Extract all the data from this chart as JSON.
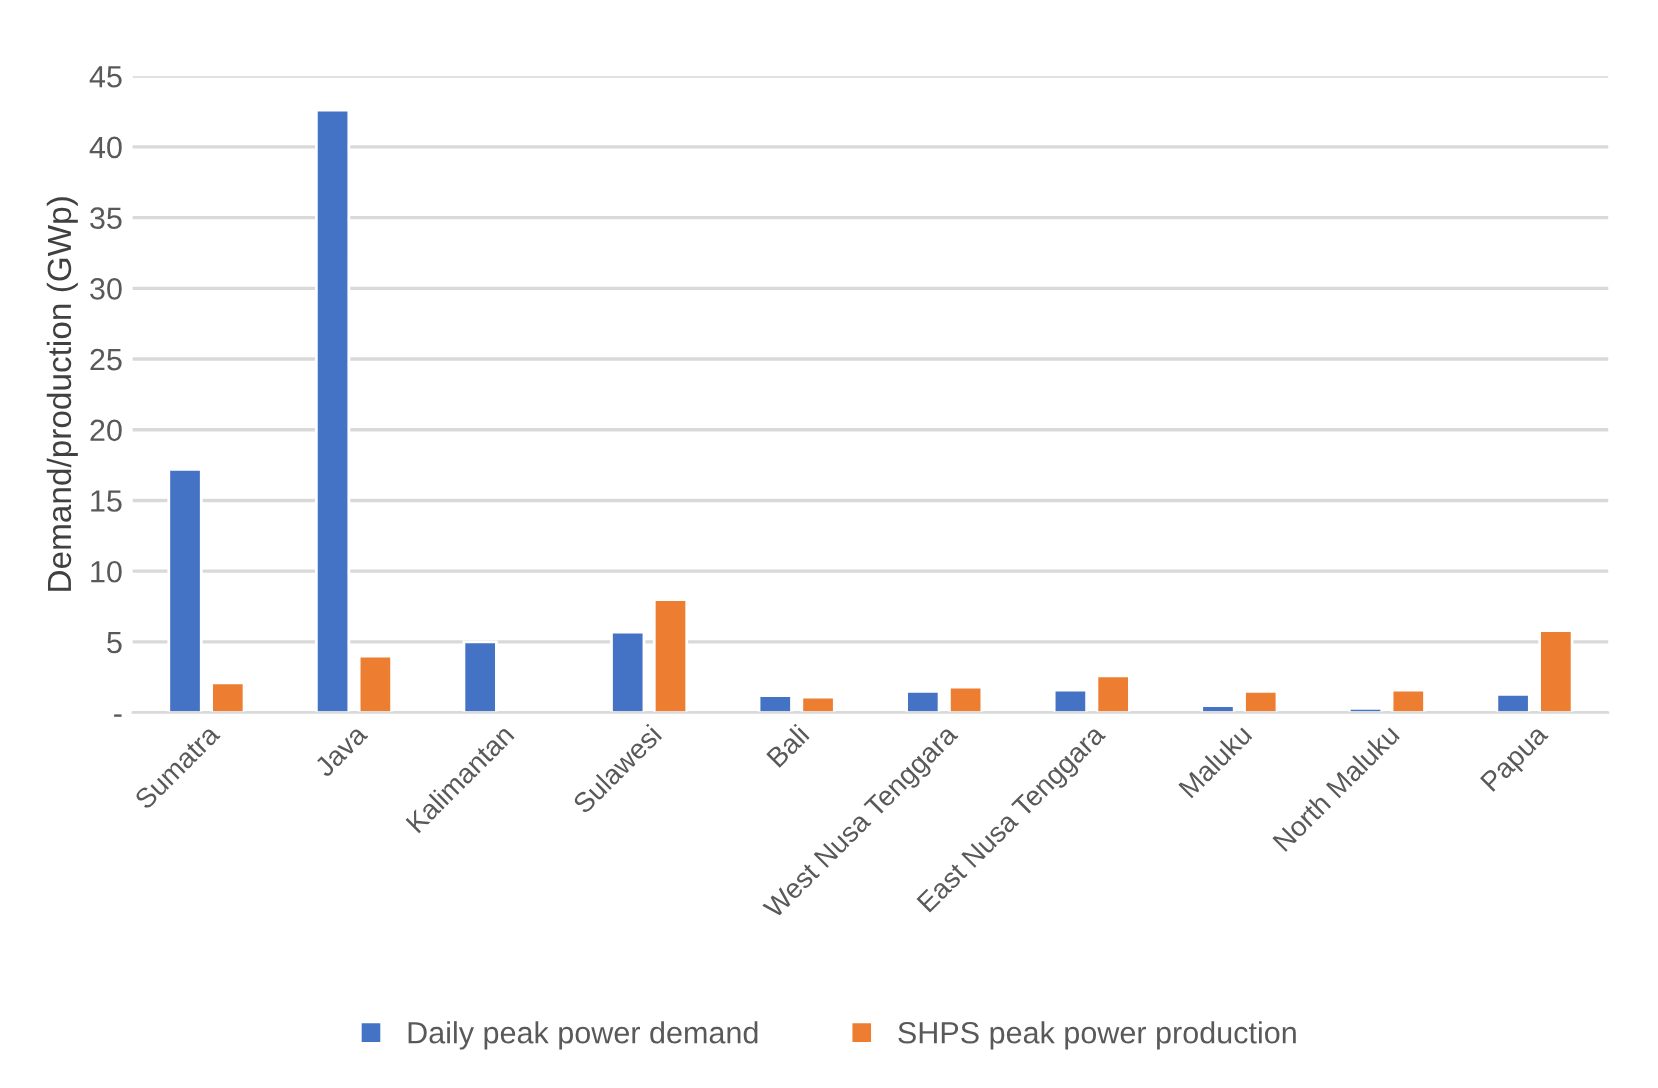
{
  "chart_data": {
    "type": "bar",
    "ylabel": "Demand/production (GWp)",
    "categories": [
      "Sumatra",
      "Java",
      "Kalimantan",
      "Sulawesi",
      "Bali",
      "West Nusa Tenggara",
      "East Nusa Tenggara",
      "Maluku",
      "North Maluku",
      "Papua"
    ],
    "series": [
      {
        "name": "Daily peak power demand",
        "color": "#4472c4",
        "values": [
          17.2,
          42.6,
          5.0,
          5.7,
          1.2,
          1.5,
          1.6,
          0.5,
          0.3,
          1.3
        ]
      },
      {
        "name": "SHPS peak power production",
        "color": "#ed7d31",
        "values": [
          2.1,
          4.0,
          null,
          8.0,
          1.1,
          1.8,
          2.6,
          1.5,
          1.6,
          5.8
        ]
      }
    ],
    "ylim": [
      0,
      45
    ],
    "yticks": [
      {
        "value": 0,
        "label": "-"
      },
      5,
      10,
      15,
      20,
      25,
      30,
      35,
      40,
      45
    ],
    "grid": "y",
    "legend": "bottom"
  }
}
